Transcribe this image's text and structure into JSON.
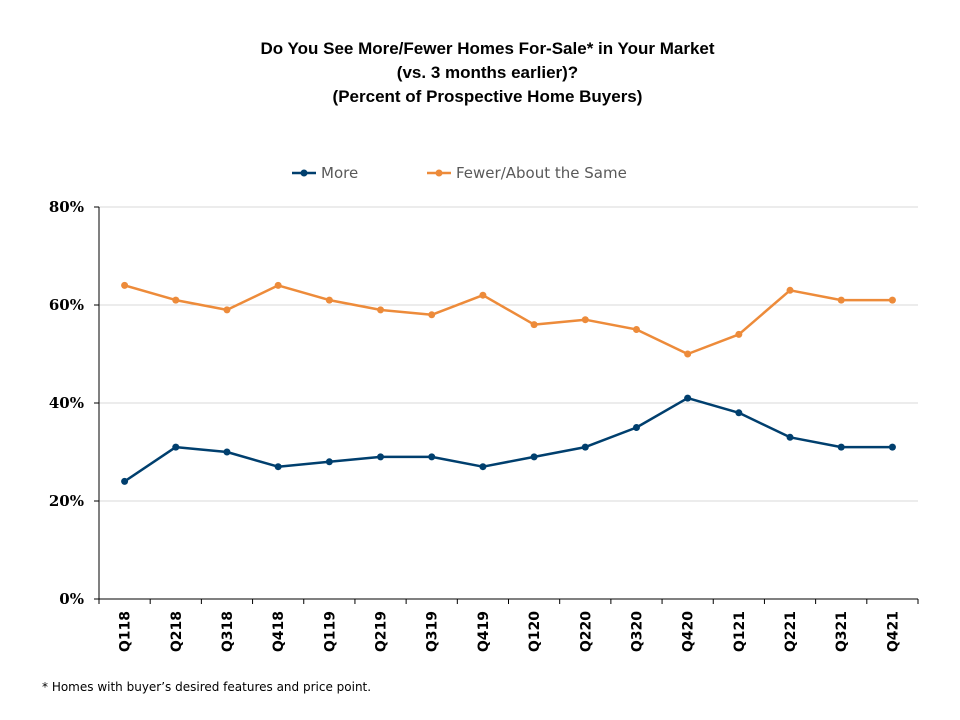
{
  "chart_data": {
    "type": "line",
    "title_lines": [
      "Do You See More/Fewer Homes For-Sale* in Your Market",
      "(vs. 3 months earlier)?",
      "(Percent of Prospective Home Buyers)"
    ],
    "categories": [
      "Q118",
      "Q218",
      "Q318",
      "Q418",
      "Q119",
      "Q219",
      "Q319",
      "Q419",
      "Q120",
      "Q220",
      "Q320",
      "Q420",
      "Q121",
      "Q221",
      "Q321",
      "Q421"
    ],
    "series": [
      {
        "name": "More",
        "color": "#003f6e",
        "values": [
          24,
          31,
          30,
          27,
          28,
          29,
          29,
          27,
          29,
          31,
          35,
          41,
          38,
          33,
          31,
          31
        ]
      },
      {
        "name": "Fewer/About the Same",
        "color": "#ed8b3a",
        "values": [
          64,
          61,
          59,
          64,
          61,
          59,
          58,
          62,
          56,
          57,
          55,
          50,
          54,
          63,
          61,
          61
        ]
      }
    ],
    "ylim": [
      0,
      80
    ],
    "yticks": [
      0,
      20,
      40,
      60,
      80
    ],
    "ytick_labels": [
      "0%",
      "20%",
      "40%",
      "60%",
      "80%"
    ],
    "grid": true,
    "legend_position": "top-center",
    "xlabel": "",
    "ylabel": ""
  },
  "footnote": "* Homes with buyer’s desired features and price point."
}
